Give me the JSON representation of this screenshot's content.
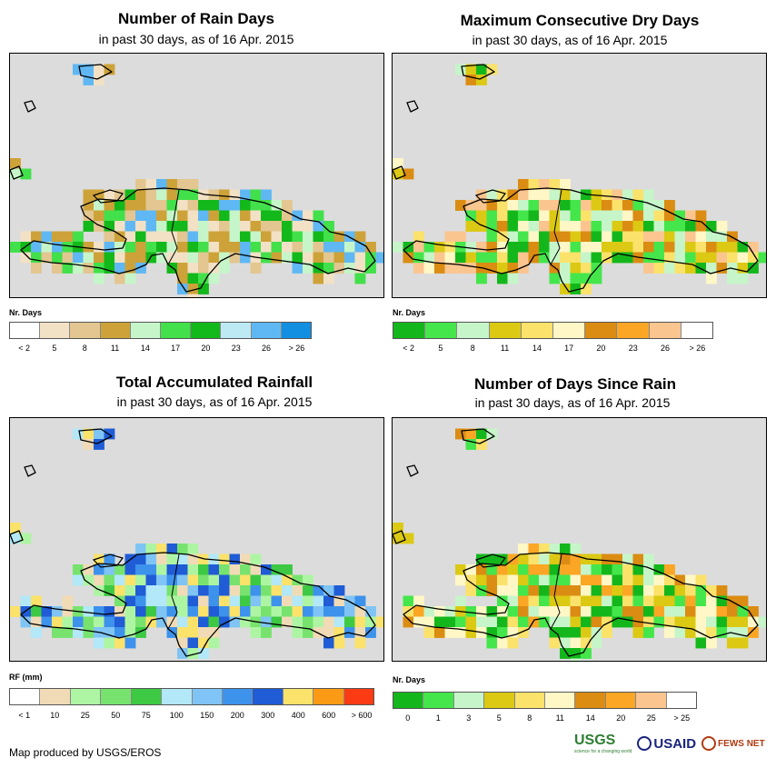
{
  "panels": [
    {
      "id": "rain-days",
      "title": "Number of Rain Days",
      "subtitle": "in past 30 days, as of 16 Apr. 2015",
      "legend_title": "Nr. Days",
      "legend_labels": [
        "< 2",
        "5",
        "8",
        "11",
        "14",
        "17",
        "20",
        "23",
        "26",
        "> 26"
      ],
      "legend_colors": [
        "#ffffff",
        "#f3e1c5",
        "#e3c690",
        "#cda238",
        "#c6f5c9",
        "#42e04a",
        "#13b81a",
        "#bde9f4",
        "#5fb8f4",
        "#138fe1"
      ],
      "land_palette": [
        "#f3e1c5",
        "#e3c690",
        "#cda238",
        "#c6f5c9",
        "#42e04a",
        "#13b81a",
        "#5fb8f4"
      ]
    },
    {
      "id": "max-dry-days",
      "title": "Maximum Consecutive Dry Days",
      "subtitle": "in past 30 days, as of 16 Apr. 2015",
      "legend_title": "Nr. Days",
      "legend_labels": [
        "< 2",
        "5",
        "8",
        "11",
        "14",
        "17",
        "20",
        "23",
        "26",
        "> 26"
      ],
      "legend_colors": [
        "#14b71b",
        "#44e64b",
        "#c6f5c9",
        "#dbc914",
        "#fbe26a",
        "#fff7c6",
        "#db8c12",
        "#fba624",
        "#fbc590",
        "#ffffff"
      ],
      "land_palette": [
        "#c6f5c9",
        "#44e64b",
        "#14b71b",
        "#dbc914",
        "#fbe26a",
        "#fff7c6",
        "#db8c12",
        "#fbc590"
      ]
    },
    {
      "id": "total-rainfall",
      "title": "Total Accumulated Rainfall",
      "subtitle": "in past 30 days, as of 16 Apr. 2015",
      "legend_title": "RF (mm)",
      "legend_labels": [
        "< 1",
        "10",
        "25",
        "50",
        "75",
        "100",
        "150",
        "200",
        "300",
        "400",
        "600",
        "> 600"
      ],
      "legend_colors": [
        "#ffffff",
        "#f1dbb6",
        "#aef5a3",
        "#77e36e",
        "#3ec944",
        "#b2e8f7",
        "#7fc4f4",
        "#3d92ec",
        "#1f5cd6",
        "#fbe26a",
        "#fb9a14",
        "#fb3b14"
      ],
      "land_palette": [
        "#aef5a3",
        "#77e36e",
        "#3ec944",
        "#b2e8f7",
        "#7fc4f4",
        "#3d92ec",
        "#1f5cd6",
        "#f1dbb6",
        "#fbe26a"
      ]
    },
    {
      "id": "days-since-rain",
      "title": "Number of Days Since Rain",
      "subtitle": "in past 30 days, as of 16 Apr. 2015",
      "legend_title": "Nr. Days",
      "legend_labels": [
        "0",
        "1",
        "3",
        "5",
        "8",
        "11",
        "14",
        "20",
        "25",
        "> 25"
      ],
      "legend_colors": [
        "#14b71b",
        "#44e64b",
        "#c6f5c9",
        "#dbc914",
        "#fbe26a",
        "#fff7c6",
        "#db8c12",
        "#fba624",
        "#fbc590",
        "#ffffff"
      ],
      "land_palette": [
        "#fbe26a",
        "#fff7c6",
        "#dbc914",
        "#fba624",
        "#db8c12",
        "#14b71b",
        "#44e64b",
        "#c6f5c9"
      ]
    }
  ],
  "footer": {
    "credit": "Map produced by USGS/EROS",
    "logo_usgs": "USGS",
    "logo_usgs_tagline": "science for a changing world",
    "logo_usaid": "USAID",
    "logo_fews": "FEWS NET"
  }
}
